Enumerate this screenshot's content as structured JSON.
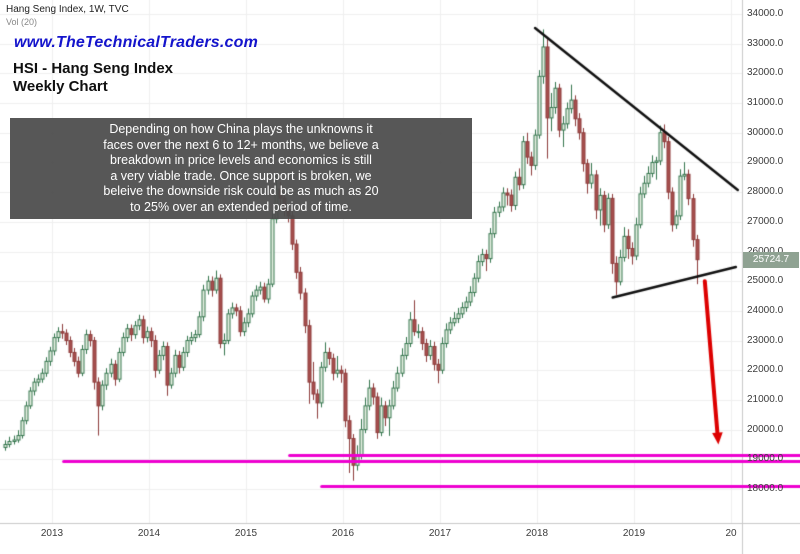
{
  "header": {
    "symbol_title": "Hang Seng Index, 1W, TVC",
    "volume_label": "Vol (20)",
    "watermark": "www.TheTechnicalTraders.com",
    "heading": "HSI - Hang Seng Index",
    "subheading": "Weekly Chart"
  },
  "annotation": {
    "lines": [
      "Depending on how China plays the unknowns it",
      "faces over the next 6 to 12+ months, we believe a",
      "breakdown in price levels and economics is still",
      "a very viable trade.  Once support is broken, we",
      "beleive the downside risk could be as much as 20",
      "to 25% over an extended period of time."
    ]
  },
  "chart_data": {
    "type": "candlestick",
    "title": "HSI - Hang Seng Index Weekly Chart",
    "symbol": "HSI",
    "timeframe": "1W",
    "exchange": "TVC",
    "grid": true,
    "start_year": 2012.52,
    "interval_years": 0.0416667,
    "ylim": [
      16850,
      34470
    ],
    "last_price": 25724.7,
    "last_price_label": "25724.7",
    "y_ticks": [
      {
        "price": 34000,
        "label": "34000.0"
      },
      {
        "price": 33000,
        "label": "33000.0"
      },
      {
        "price": 32000,
        "label": "32000.0"
      },
      {
        "price": 31000,
        "label": "31000.0"
      },
      {
        "price": 30000,
        "label": "30000.0"
      },
      {
        "price": 29000,
        "label": "29000.0"
      },
      {
        "price": 28000,
        "label": "28000.0"
      },
      {
        "price": 27000,
        "label": "27000.0"
      },
      {
        "price": 26000,
        "label": "26000.0"
      },
      {
        "price": 25000,
        "label": "25000.0"
      },
      {
        "price": 24000,
        "label": "24000.0"
      },
      {
        "price": 23000,
        "label": "23000.0"
      },
      {
        "price": 22000,
        "label": "22000.0"
      },
      {
        "price": 21000,
        "label": "21000.0"
      },
      {
        "price": 20000,
        "label": "20000.0"
      },
      {
        "price": 19000,
        "label": "19000.0"
      },
      {
        "price": 18000,
        "label": "18000.0"
      }
    ],
    "x_ticks": [
      {
        "year": 2013,
        "label": "2013"
      },
      {
        "year": 2014,
        "label": "2014"
      },
      {
        "year": 2015,
        "label": "2015"
      },
      {
        "year": 2016,
        "label": "2016"
      },
      {
        "year": 2017,
        "label": "2017"
      },
      {
        "year": 2018,
        "label": "2018"
      },
      {
        "year": 2019,
        "label": "2019"
      },
      {
        "year": 2020,
        "label": "20"
      }
    ],
    "candles": [
      [
        19400,
        19640,
        19290,
        19500
      ],
      [
        19500,
        19760,
        19400,
        19600
      ],
      [
        19600,
        19800,
        19500,
        19650
      ],
      [
        19650,
        19980,
        19560,
        19800
      ],
      [
        19800,
        20420,
        19700,
        20300
      ],
      [
        20300,
        20950,
        20180,
        20800
      ],
      [
        20800,
        21430,
        20700,
        21300
      ],
      [
        21300,
        21740,
        21150,
        21600
      ],
      [
        21600,
        21860,
        21460,
        21700
      ],
      [
        21700,
        22060,
        21580,
        21900
      ],
      [
        21900,
        22440,
        21780,
        22300
      ],
      [
        22300,
        22790,
        22150,
        22650
      ],
      [
        22650,
        23240,
        22500,
        23100
      ],
      [
        23100,
        23450,
        22950,
        23300
      ],
      [
        23300,
        23560,
        23060,
        23250
      ],
      [
        23250,
        23380,
        22850,
        23000
      ],
      [
        23000,
        23140,
        22440,
        22600
      ],
      [
        22600,
        22750,
        22130,
        22300
      ],
      [
        22300,
        22460,
        21760,
        21900
      ],
      [
        21900,
        22850,
        21800,
        22700
      ],
      [
        22700,
        23370,
        22550,
        23200
      ],
      [
        23200,
        23340,
        22800,
        23000
      ],
      [
        23000,
        23120,
        21350,
        21600
      ],
      [
        21600,
        21760,
        19800,
        20800
      ],
      [
        20800,
        21660,
        20650,
        21500
      ],
      [
        21500,
        22070,
        21340,
        21900
      ],
      [
        21900,
        22390,
        21760,
        22200
      ],
      [
        22200,
        22340,
        21480,
        21700
      ],
      [
        21700,
        22760,
        21600,
        22600
      ],
      [
        22600,
        23270,
        22470,
        23100
      ],
      [
        23100,
        23560,
        22950,
        23400
      ],
      [
        23400,
        23540,
        22980,
        23200
      ],
      [
        23200,
        23660,
        23060,
        23500
      ],
      [
        23500,
        23870,
        23350,
        23700
      ],
      [
        23700,
        23840,
        22900,
        23100
      ],
      [
        23100,
        23470,
        22940,
        23300
      ],
      [
        23300,
        23440,
        22780,
        23000
      ],
      [
        23000,
        23180,
        21750,
        22000
      ],
      [
        22000,
        22680,
        21880,
        22500
      ],
      [
        22500,
        22970,
        22340,
        22800
      ],
      [
        22800,
        22940,
        21140,
        21500
      ],
      [
        21500,
        22080,
        21380,
        21900
      ],
      [
        21900,
        22690,
        21760,
        22500
      ],
      [
        22500,
        22650,
        21890,
        22100
      ],
      [
        22100,
        22780,
        21980,
        22600
      ],
      [
        22600,
        23160,
        22450,
        23000
      ],
      [
        23000,
        23290,
        22860,
        23100
      ],
      [
        23100,
        23360,
        22950,
        23200
      ],
      [
        23200,
        23980,
        23100,
        23800
      ],
      [
        23800,
        24880,
        23650,
        24700
      ],
      [
        24700,
        25180,
        24550,
        25000
      ],
      [
        25000,
        25160,
        24480,
        24700
      ],
      [
        24700,
        25360,
        24580,
        25100
      ],
      [
        25100,
        25230,
        22740,
        22900
      ],
      [
        22900,
        23240,
        22500,
        23000
      ],
      [
        23000,
        24060,
        22880,
        23900
      ],
      [
        23900,
        24280,
        23740,
        24100
      ],
      [
        24100,
        24240,
        23820,
        24000
      ],
      [
        24000,
        24160,
        23140,
        23300
      ],
      [
        23300,
        23780,
        23150,
        23600
      ],
      [
        23600,
        24080,
        23450,
        23900
      ],
      [
        23900,
        24650,
        23780,
        24500
      ],
      [
        24500,
        24860,
        24340,
        24700
      ],
      [
        24700,
        24980,
        24550,
        24800
      ],
      [
        24800,
        24950,
        24280,
        24400
      ],
      [
        24400,
        25080,
        24250,
        24900
      ],
      [
        24900,
        27380,
        24800,
        27100
      ],
      [
        27100,
        28590,
        26950,
        28100
      ],
      [
        28100,
        28340,
        27550,
        27800
      ],
      [
        27800,
        27960,
        27190,
        27400
      ],
      [
        27400,
        27560,
        26980,
        27200
      ],
      [
        27200,
        27380,
        26050,
        26250
      ],
      [
        26250,
        26400,
        25080,
        25300
      ],
      [
        25300,
        25480,
        24380,
        24600
      ],
      [
        24600,
        24760,
        23250,
        23500
      ],
      [
        23500,
        23700,
        20870,
        21600
      ],
      [
        21600,
        22280,
        21000,
        21200
      ],
      [
        21200,
        21360,
        20370,
        20900
      ],
      [
        20900,
        22280,
        20750,
        22100
      ],
      [
        22100,
        22940,
        21950,
        22600
      ],
      [
        22600,
        22760,
        22180,
        22400
      ],
      [
        22400,
        22560,
        21660,
        21900
      ],
      [
        21900,
        22480,
        21750,
        22000
      ],
      [
        22000,
        22160,
        21580,
        21900
      ],
      [
        21900,
        22050,
        20080,
        20300
      ],
      [
        20300,
        20480,
        18540,
        19700
      ],
      [
        19700,
        19850,
        18280,
        18800
      ],
      [
        18800,
        19470,
        18620,
        19100
      ],
      [
        19100,
        20360,
        19000,
        20000
      ],
      [
        20000,
        21080,
        19880,
        20800
      ],
      [
        20800,
        21680,
        20650,
        21400
      ],
      [
        21400,
        21560,
        20840,
        21100
      ],
      [
        21100,
        21250,
        19690,
        19900
      ],
      [
        19900,
        21080,
        19780,
        20800
      ],
      [
        20800,
        20960,
        20120,
        20400
      ],
      [
        20400,
        21010,
        19790,
        20800
      ],
      [
        20800,
        21640,
        20680,
        21400
      ],
      [
        21400,
        22120,
        21280,
        21900
      ],
      [
        21900,
        22740,
        21780,
        22500
      ],
      [
        22500,
        23120,
        22360,
        22900
      ],
      [
        22900,
        23960,
        22780,
        23700
      ],
      [
        23700,
        24360,
        23160,
        23300
      ],
      [
        23300,
        23550,
        23080,
        23300
      ],
      [
        23300,
        23450,
        22680,
        22900
      ],
      [
        22900,
        23060,
        22280,
        22500
      ],
      [
        22500,
        23020,
        22350,
        22800
      ],
      [
        22800,
        22960,
        21990,
        22200
      ],
      [
        22200,
        22380,
        21560,
        22000
      ],
      [
        22000,
        23110,
        21880,
        22900
      ],
      [
        22900,
        23580,
        22760,
        23360
      ],
      [
        23360,
        23790,
        23220,
        23600
      ],
      [
        23600,
        23960,
        23480,
        23740
      ],
      [
        23740,
        24100,
        23590,
        23900
      ],
      [
        23900,
        24290,
        23760,
        24110
      ],
      [
        24110,
        24480,
        23970,
        24300
      ],
      [
        24300,
        24830,
        24160,
        24620
      ],
      [
        24620,
        25270,
        24480,
        25100
      ],
      [
        25100,
        25870,
        24960,
        25660
      ],
      [
        25660,
        26090,
        25510,
        25900
      ],
      [
        25900,
        26060,
        25340,
        25760
      ],
      [
        25760,
        26790,
        25620,
        26600
      ],
      [
        26600,
        27500,
        26460,
        27320
      ],
      [
        27320,
        27680,
        27160,
        27500
      ],
      [
        27500,
        28160,
        27350,
        27970
      ],
      [
        27970,
        28130,
        27550,
        27900
      ],
      [
        27900,
        28090,
        27340,
        27550
      ],
      [
        27550,
        28690,
        27400,
        28500
      ],
      [
        28500,
        28800,
        28060,
        28250
      ],
      [
        28250,
        29890,
        28110,
        29700
      ],
      [
        29700,
        30000,
        28950,
        29180
      ],
      [
        29180,
        29360,
        28560,
        28900
      ],
      [
        28900,
        30110,
        28750,
        29920
      ],
      [
        29920,
        32110,
        29800,
        31900
      ],
      [
        31900,
        33480,
        31650,
        32890
      ],
      [
        32890,
        33150,
        29130,
        30500
      ],
      [
        30500,
        31340,
        30050,
        30850
      ],
      [
        30850,
        31710,
        30640,
        31500
      ],
      [
        31500,
        31650,
        29850,
        30090
      ],
      [
        30090,
        30560,
        29520,
        30300
      ],
      [
        30300,
        31020,
        30140,
        30810
      ],
      [
        30810,
        31620,
        30650,
        31100
      ],
      [
        31100,
        31260,
        30220,
        30470
      ],
      [
        30470,
        30660,
        29770,
        30000
      ],
      [
        30000,
        30160,
        28690,
        28960
      ],
      [
        28960,
        29110,
        27950,
        28300
      ],
      [
        28300,
        28980,
        28120,
        28580
      ],
      [
        28580,
        28740,
        27090,
        27400
      ],
      [
        27400,
        28130,
        26870,
        27890
      ],
      [
        27890,
        28040,
        26650,
        26900
      ],
      [
        26900,
        27960,
        26760,
        27790
      ],
      [
        27790,
        27940,
        25250,
        25600
      ],
      [
        25600,
        25840,
        24540,
        24980
      ],
      [
        24980,
        26060,
        24860,
        25800
      ],
      [
        25800,
        26820,
        25660,
        26510
      ],
      [
        26510,
        26750,
        25750,
        26100
      ],
      [
        26100,
        26310,
        25560,
        25850
      ],
      [
        25850,
        27140,
        25710,
        26900
      ],
      [
        26900,
        28180,
        26780,
        27940
      ],
      [
        27940,
        28550,
        27800,
        28300
      ],
      [
        28300,
        28870,
        28160,
        28630
      ],
      [
        28630,
        29240,
        28500,
        29000
      ],
      [
        29000,
        29190,
        28420,
        29050
      ],
      [
        29050,
        30240,
        28910,
        30000
      ],
      [
        30000,
        30280,
        29480,
        29700
      ],
      [
        29700,
        29860,
        27760,
        28000
      ],
      [
        28000,
        28160,
        26670,
        26900
      ],
      [
        26900,
        27390,
        26760,
        27200
      ],
      [
        27200,
        28770,
        27060,
        28540
      ],
      [
        28540,
        29010,
        28400,
        28600
      ],
      [
        28600,
        28760,
        27560,
        27780
      ],
      [
        27780,
        27940,
        26160,
        26400
      ],
      [
        26400,
        26560,
        24900,
        25724.7
      ]
    ],
    "trendlines": [
      {
        "x1": 2017.98,
        "p1": 33530,
        "x2": 2020.07,
        "p2": 28070
      },
      {
        "x1": 2018.78,
        "p1": 24450,
        "x2": 2020.05,
        "p2": 25480
      }
    ],
    "support_lines": [
      {
        "price": 19150,
        "start_year": 2015.45
      },
      {
        "price": 18950,
        "start_year": 2013.12
      },
      {
        "price": 18100,
        "start_year": 2015.78
      }
    ],
    "arrow": {
      "x1": 2019.73,
      "p1": 25000,
      "x2": 2019.87,
      "p2": 19500
    },
    "colors": {
      "up_fill": "#e6efe2",
      "up_stroke": "#35764e",
      "down_fill": "#a8504f",
      "down_stroke": "#8e3d3c",
      "support": "#ee00d0",
      "trend": "#111111",
      "arrow": "#dd0000",
      "grid": "#efefef",
      "axis_border": "#c9c9c9",
      "axis_text": "#3c3c3c",
      "last_price_bg": "#8fa292",
      "watermark_blue": "#1414cc"
    }
  }
}
